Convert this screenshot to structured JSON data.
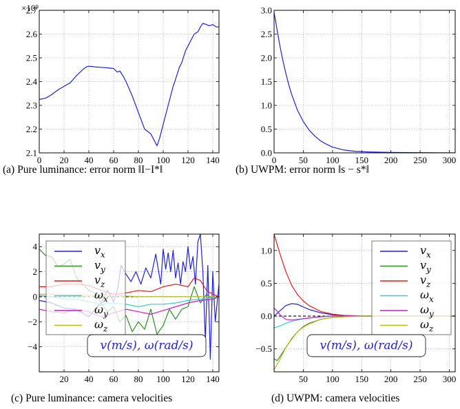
{
  "chart_data": [
    {
      "id": "a",
      "type": "line",
      "caption": "(a) Pure luminance: error norm ‖I−I*‖",
      "multiplier": "×10⁹",
      "xlim": [
        0,
        145
      ],
      "ylim": [
        2.1,
        2.7
      ],
      "xticks": [
        0,
        20,
        40,
        60,
        80,
        100,
        120,
        140
      ],
      "xtick_labels": [
        "0",
        "20",
        "40",
        "60",
        "80",
        "100",
        "120",
        "140"
      ],
      "yticks": [
        2.1,
        2.2,
        2.3,
        2.4,
        2.5,
        2.6,
        2.7
      ],
      "ytick_labels": [
        "2.1",
        "2.2",
        "2.3",
        "2.4",
        "2.5",
        "2.6",
        "2.7"
      ],
      "grid": true,
      "series": [
        {
          "color": "#1f1fd8",
          "x": [
            0,
            5,
            10,
            15,
            20,
            25,
            30,
            35,
            38,
            40,
            45,
            50,
            55,
            60,
            63,
            65,
            68,
            70,
            75,
            80,
            85,
            90,
            93,
            95,
            97,
            100,
            103,
            105,
            108,
            110,
            113,
            115,
            118,
            120,
            123,
            125,
            128,
            130,
            132,
            135,
            137,
            140,
            143,
            145
          ],
          "values": [
            2.325,
            2.33,
            2.345,
            2.365,
            2.38,
            2.395,
            2.425,
            2.45,
            2.462,
            2.465,
            2.462,
            2.46,
            2.458,
            2.455,
            2.44,
            2.445,
            2.42,
            2.4,
            2.34,
            2.27,
            2.2,
            2.18,
            2.15,
            2.13,
            2.16,
            2.22,
            2.28,
            2.32,
            2.38,
            2.41,
            2.46,
            2.48,
            2.53,
            2.55,
            2.58,
            2.6,
            2.61,
            2.63,
            2.645,
            2.64,
            2.635,
            2.64,
            2.63,
            2.63
          ]
        }
      ]
    },
    {
      "id": "b",
      "type": "line",
      "caption": "(b) UWPM: error norm ‖s − s*‖",
      "xlim": [
        0,
        310
      ],
      "ylim": [
        0,
        3
      ],
      "xticks": [
        0,
        50,
        100,
        150,
        200,
        250,
        300
      ],
      "xtick_labels": [
        "0",
        "50",
        "100",
        "150",
        "200",
        "250",
        "300"
      ],
      "yticks": [
        0,
        0.5,
        1.0,
        1.5,
        2.0,
        2.5,
        3.0
      ],
      "ytick_labels": [
        "0.0",
        "0.5",
        "1.0",
        "1.5",
        "2.0",
        "2.5",
        "3.0"
      ],
      "grid": true,
      "series": [
        {
          "color": "#1f1fd8",
          "x": [
            0,
            2,
            5,
            10,
            15,
            20,
            25,
            30,
            40,
            50,
            60,
            70,
            80,
            90,
            100,
            120,
            140,
            160,
            200,
            250,
            310
          ],
          "values": [
            2.95,
            2.82,
            2.6,
            2.25,
            1.95,
            1.68,
            1.44,
            1.23,
            0.9,
            0.66,
            0.48,
            0.35,
            0.25,
            0.18,
            0.12,
            0.06,
            0.03,
            0.02,
            0.01,
            0.005,
            0.0
          ]
        }
      ]
    },
    {
      "id": "c",
      "type": "line",
      "caption": "(c) Pure luminance: camera velocities",
      "xlim": [
        0,
        145
      ],
      "ylim": [
        -6,
        5
      ],
      "xticks": [
        20,
        40,
        60,
        80,
        100,
        120,
        140
      ],
      "xtick_labels": [
        "20",
        "40",
        "60",
        "80",
        "100",
        "120",
        "140"
      ],
      "yticks": [
        -4,
        -2,
        0,
        2,
        4
      ],
      "ytick_labels": [
        "−4",
        "−2",
        "0",
        "2",
        "4"
      ],
      "grid": true,
      "zero_line": true,
      "unit_label": "v(m/s), ω(rad/s)",
      "legend": {
        "placement": "top-left",
        "labels": [
          "v_x",
          "v_y",
          "v_z",
          "ω_x",
          "ω_y",
          "ω_z"
        ]
      },
      "series": [
        {
          "name": "v_x",
          "color": "#1f1fd8",
          "x": [
            0,
            10,
            20,
            30,
            40,
            45,
            50,
            55,
            60,
            63,
            66,
            70,
            74,
            78,
            82,
            86,
            90,
            94,
            98,
            100,
            102,
            104,
            106,
            108,
            110,
            112,
            114,
            116,
            118,
            120,
            122,
            124,
            126,
            128,
            130,
            132,
            134,
            136,
            138,
            140,
            142,
            145
          ],
          "values": [
            -0.3,
            -0.5,
            -0.9,
            -1.0,
            -1.6,
            -1.0,
            -0.5,
            0.5,
            -0.4,
            0.5,
            2.5,
            1.8,
            1.2,
            2.0,
            1.0,
            2.3,
            1.5,
            3.4,
            1.0,
            3.8,
            2.2,
            3.5,
            2.0,
            3.7,
            1.5,
            2.7,
            1.0,
            2.8,
            2.0,
            4.0,
            2.2,
            3.2,
            1.0,
            4.4,
            5.0,
            2.0,
            -3.5,
            2.5,
            -5.0,
            2.0,
            -2.0,
            1.0
          ]
        },
        {
          "name": "v_y",
          "color": "#2e8b22",
          "x": [
            0,
            5,
            10,
            15,
            20,
            25,
            30,
            35,
            40,
            45,
            50,
            55,
            60,
            65,
            70,
            75,
            80,
            85,
            90,
            95,
            100,
            105,
            110,
            115,
            120,
            125,
            130,
            135,
            140,
            145
          ],
          "values": [
            3.8,
            3.3,
            3.2,
            2.4,
            2.6,
            3.0,
            1.5,
            1.0,
            0.5,
            0.3,
            -0.5,
            -1.2,
            -0.8,
            -2.0,
            -1.5,
            -2.8,
            -2.0,
            -2.6,
            -1.0,
            -3.0,
            -2.3,
            -1.0,
            -1.8,
            -1.0,
            -0.8,
            0.8,
            -0.5,
            0.2,
            -0.2,
            0.0
          ]
        },
        {
          "name": "v_z",
          "color": "#e01b1b",
          "x": [
            0,
            10,
            20,
            30,
            40,
            50,
            60,
            70,
            80,
            90,
            100,
            110,
            120,
            125,
            130,
            135,
            140,
            145
          ],
          "values": [
            0.8,
            0.8,
            1.0,
            1.0,
            0.9,
            0.5,
            0.2,
            0.3,
            0.5,
            0.4,
            0.8,
            1.0,
            0.8,
            1.5,
            1.3,
            0.5,
            0.2,
            0.0
          ]
        },
        {
          "name": "ω_x",
          "color": "#3cc8c8",
          "x": [
            0,
            10,
            20,
            30,
            40,
            50,
            60,
            70,
            80,
            90,
            100,
            110,
            120,
            130,
            140,
            145
          ],
          "values": [
            0.1,
            0.0,
            -0.2,
            -0.2,
            -0.4,
            -0.6,
            -0.5,
            -0.6,
            -0.8,
            -0.6,
            -0.6,
            -0.5,
            -0.3,
            -0.2,
            -0.1,
            0.0
          ]
        },
        {
          "name": "ω_y",
          "color": "#c21fc2",
          "x": [
            0,
            10,
            20,
            30,
            40,
            50,
            60,
            70,
            80,
            90,
            100,
            110,
            120,
            130,
            140,
            145
          ],
          "values": [
            -1.0,
            -1.2,
            -1.3,
            -1.0,
            -1.2,
            -1.6,
            -1.3,
            -1.0,
            -1.2,
            -1.4,
            -1.1,
            -0.8,
            -0.5,
            -0.3,
            -0.2,
            0.0
          ]
        },
        {
          "name": "ω_z",
          "color": "#b8b81a",
          "x": [
            0,
            20,
            40,
            60,
            80,
            100,
            120,
            140,
            145
          ],
          "values": [
            0.2,
            0.2,
            0.1,
            0.1,
            0.0,
            0.0,
            0.0,
            0.0,
            0.0
          ]
        }
      ]
    },
    {
      "id": "d",
      "type": "line",
      "caption": "(d) UWPM: camera velocities",
      "xlim": [
        0,
        310
      ],
      "ylim": [
        -0.85,
        1.25
      ],
      "xticks": [
        50,
        100,
        150,
        200,
        250,
        300
      ],
      "xtick_labels": [
        "50",
        "100",
        "150",
        "200",
        "250",
        "300"
      ],
      "yticks": [
        -0.5,
        0.0,
        0.5,
        1.0
      ],
      "ytick_labels": [
        "−0.5",
        "0.0",
        "0.5",
        "1.0"
      ],
      "grid": true,
      "zero_line": true,
      "unit_label": "v(m/s), ω(rad/s)",
      "legend": {
        "placement": "top-right",
        "labels": [
          "v_x",
          "v_y",
          "v_z",
          "ω_x",
          "ω_y",
          "ω_z"
        ]
      },
      "series": [
        {
          "name": "v_x",
          "color": "#1f1fd8",
          "x": [
            0,
            10,
            20,
            30,
            40,
            50,
            60,
            80,
            100,
            120,
            150,
            200,
            310
          ],
          "values": [
            0.0,
            0.08,
            0.16,
            0.19,
            0.18,
            0.14,
            0.1,
            0.05,
            0.02,
            0.01,
            0.0,
            0.0,
            0.0
          ]
        },
        {
          "name": "v_y",
          "color": "#2e8b22",
          "x": [
            0,
            5,
            10,
            20,
            30,
            40,
            50,
            60,
            80,
            100,
            120,
            150,
            200,
            310
          ],
          "values": [
            -0.65,
            -0.68,
            -0.62,
            -0.48,
            -0.35,
            -0.24,
            -0.16,
            -0.11,
            -0.05,
            -0.02,
            -0.01,
            0.0,
            0.0,
            0.0
          ]
        },
        {
          "name": "v_z",
          "color": "#e01b1b",
          "x": [
            0,
            10,
            20,
            30,
            40,
            50,
            60,
            80,
            100,
            120,
            150,
            200,
            310
          ],
          "values": [
            1.25,
            0.95,
            0.68,
            0.47,
            0.33,
            0.23,
            0.16,
            0.07,
            0.03,
            0.01,
            0.0,
            0.0,
            0.0
          ]
        },
        {
          "name": "ω_x",
          "color": "#3cc8c8",
          "x": [
            0,
            10,
            20,
            30,
            40,
            50,
            60,
            80,
            100,
            120,
            150,
            200,
            310
          ],
          "values": [
            -0.18,
            -0.15,
            -0.11,
            -0.08,
            -0.06,
            -0.04,
            -0.03,
            -0.01,
            0.0,
            0.0,
            0.0,
            0.0,
            0.0
          ]
        },
        {
          "name": "ω_y",
          "color": "#c21fc2",
          "x": [
            0,
            5,
            10,
            20,
            30,
            40,
            50,
            60,
            80,
            100,
            150,
            200,
            310
          ],
          "values": [
            0.12,
            0.08,
            0.02,
            -0.05,
            -0.06,
            -0.05,
            -0.04,
            -0.03,
            -0.01,
            0.0,
            0.0,
            0.0,
            0.0
          ]
        },
        {
          "name": "ω_z",
          "color": "#b8b81a",
          "x": [
            0,
            10,
            20,
            30,
            40,
            50,
            60,
            80,
            100,
            120,
            150,
            200,
            310
          ],
          "values": [
            -0.82,
            -0.66,
            -0.48,
            -0.34,
            -0.24,
            -0.17,
            -0.12,
            -0.05,
            -0.02,
            -0.01,
            0.0,
            0.0,
            0.0
          ]
        }
      ]
    }
  ]
}
